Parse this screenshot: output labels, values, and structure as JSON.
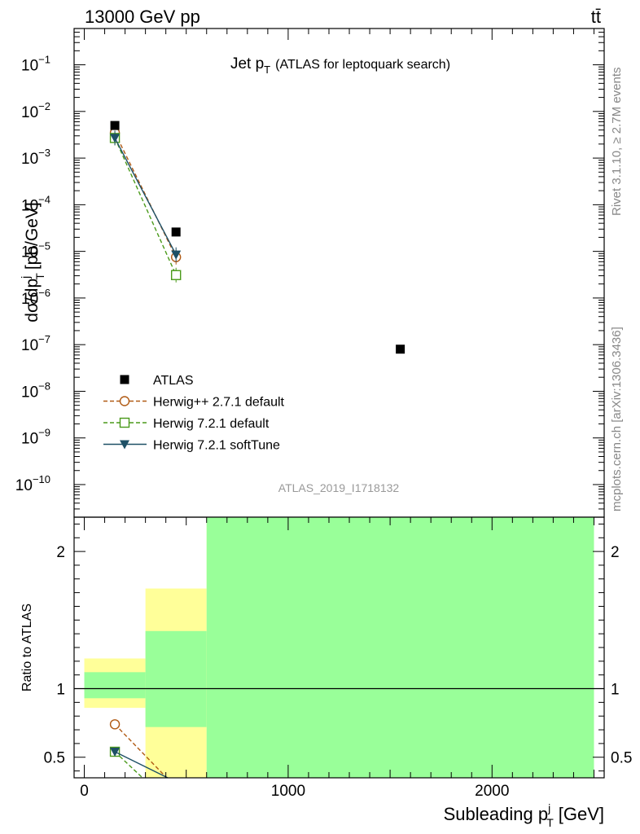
{
  "header": {
    "left": "13000 GeV pp",
    "right": "tt̄"
  },
  "side_labels": {
    "rivet": "Rivet 3.1.10, ≥ 2.7M events",
    "mcplots": "mcplots.cern.ch [arXiv:1306.3436]"
  },
  "chart_data": [
    {
      "type": "scatter",
      "title_main": "Jet p",
      "title_sub": "T",
      "title_rest": "(ATLAS for leptoquark search)",
      "ylabel": "dσ/dp",
      "ylabel_sup": "j",
      "ylabel_sub": "T",
      "ylabel_unit": "[pb/GeV]",
      "yscale": "log",
      "ylim": [
        2e-11,
        0.6
      ],
      "xlim": [
        -50,
        2550
      ],
      "watermark": "ATLAS_2019_I1718132",
      "yticks": [
        {
          "value": 1e-10,
          "base": "10",
          "exp": "−10"
        },
        {
          "value": 1e-09,
          "base": "10",
          "exp": "−9"
        },
        {
          "value": 1e-08,
          "base": "10",
          "exp": "−8"
        },
        {
          "value": 1e-07,
          "base": "10",
          "exp": "−7"
        },
        {
          "value": 1e-06,
          "base": "10",
          "exp": "−6"
        },
        {
          "value": 1e-05,
          "base": "10",
          "exp": "−5"
        },
        {
          "value": 0.0001,
          "base": "10",
          "exp": "−4"
        },
        {
          "value": 0.001,
          "base": "10",
          "exp": "−3"
        },
        {
          "value": 0.01,
          "base": "10",
          "exp": "−2"
        },
        {
          "value": 0.1,
          "base": "10",
          "exp": "−1"
        }
      ],
      "legend_position": "lower-left",
      "series": [
        {
          "name": "ATLAS",
          "color": "#000000",
          "marker": "filled-square",
          "line": "none",
          "x": [
            150,
            450,
            1550
          ],
          "y": [
            0.005,
            2.6e-05,
            8e-08
          ]
        },
        {
          "name": "Herwig++ 2.7.1 default",
          "color": "#b05a14",
          "marker": "open-circle",
          "line": "dashed",
          "x": [
            150,
            450
          ],
          "y": [
            0.0035,
            7.5e-06
          ]
        },
        {
          "name": "Herwig 7.2.1 default",
          "color": "#4a9a1a",
          "marker": "open-square",
          "line": "dashed",
          "x": [
            150,
            450
          ],
          "y": [
            0.0027,
            3.1e-06
          ]
        },
        {
          "name": "Herwig 7.2.1 softTune",
          "color": "#1e5066",
          "marker": "filled-triangle-down",
          "line": "solid",
          "x": [
            150,
            450
          ],
          "y": [
            0.0027,
            8.5e-06
          ]
        }
      ]
    },
    {
      "type": "line",
      "ylabel": "Ratio to ATLAS",
      "xlabel": "Subleading p",
      "xlabel_sup": "j",
      "xlabel_sub": "T",
      "xlabel_unit": "[GeV]",
      "xlim": [
        -50,
        2550
      ],
      "ylim": [
        0.35,
        2.25
      ],
      "xticks": [
        0,
        1000,
        2000
      ],
      "yticks": [
        0.5,
        1,
        2
      ],
      "bands": [
        {
          "x0": 0,
          "x1": 300,
          "yellow": [
            0.86,
            1.22
          ],
          "green": [
            0.93,
            1.12
          ]
        },
        {
          "x0": 300,
          "x1": 600,
          "yellow": [
            0.3,
            1.73
          ],
          "green": [
            0.72,
            1.42
          ]
        },
        {
          "x0": 600,
          "x1": 2500,
          "yellow": [
            0.3,
            2.3
          ],
          "green": [
            0.3,
            2.3
          ]
        }
      ],
      "reference": 1,
      "series": [
        {
          "name": "Herwig++ 2.7.1 default",
          "x": [
            150,
            450
          ],
          "y": [
            0.74,
            0.28
          ]
        },
        {
          "name": "Herwig 7.2.1 default",
          "x": [
            150,
            450
          ],
          "y": [
            0.54,
            0.12
          ]
        },
        {
          "name": "Herwig 7.2.1 softTune",
          "x": [
            150,
            450
          ],
          "y": [
            0.54,
            0.32
          ]
        }
      ]
    }
  ]
}
